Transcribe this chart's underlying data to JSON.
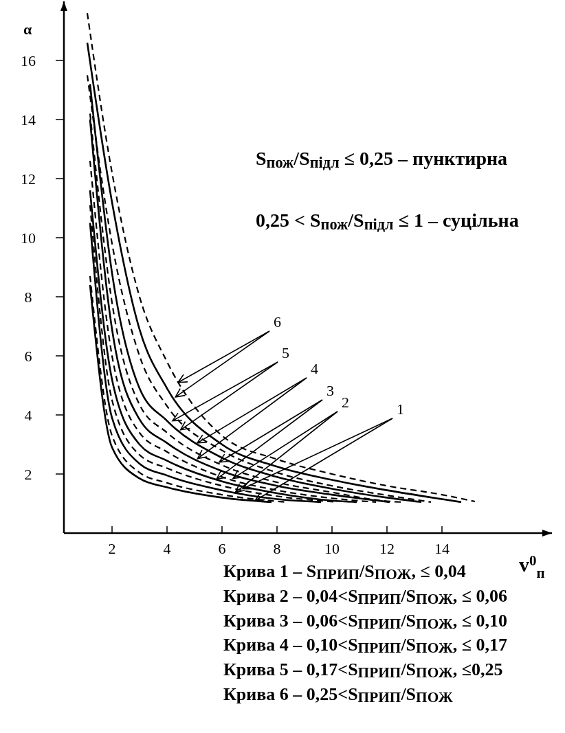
{
  "chart_data": {
    "type": "line",
    "xlabel": "v$^{0}$$_{п}$",
    "ylabel": "α",
    "xlim": [
      0.25,
      18
    ],
    "ylim": [
      0,
      18
    ],
    "xticks": [
      2,
      4,
      6,
      8,
      10,
      12,
      14
    ],
    "yticks": [
      2,
      4,
      6,
      8,
      10,
      12,
      14,
      16
    ],
    "series": [
      {
        "color": "#000000",
        "line_style": "solid",
        "x": [
          1.2,
          2,
          3,
          4,
          6,
          7.8
        ],
        "values": [
          8.4,
          2.9,
          1.85,
          1.55,
          1.2,
          1.05
        ]
      },
      {
        "color": "#000000",
        "line_style": "dashed",
        "x": [
          1.2,
          2,
          3,
          4,
          6,
          8.3
        ],
        "values": [
          8.7,
          3.3,
          2.05,
          1.7,
          1.3,
          1.05
        ]
      },
      {
        "color": "#000000",
        "line_style": "solid",
        "x": [
          1.2,
          2,
          3,
          4,
          6,
          8,
          9.6
        ],
        "values": [
          10.5,
          3.9,
          2.35,
          1.95,
          1.45,
          1.15,
          1.05
        ]
      },
      {
        "color": "#000000",
        "line_style": "dashed",
        "x": [
          1.2,
          2,
          3,
          4,
          6,
          8,
          10.2
        ],
        "values": [
          11.1,
          4.5,
          2.65,
          2.2,
          1.6,
          1.25,
          1.05
        ]
      },
      {
        "color": "#000000",
        "line_style": "solid",
        "x": [
          1.2,
          2,
          3,
          4,
          6,
          8,
          10,
          10.9
        ],
        "values": [
          11.6,
          5.2,
          3.0,
          2.45,
          1.75,
          1.35,
          1.1,
          1.05
        ]
      },
      {
        "color": "#000000",
        "line_style": "dashed",
        "x": [
          1.2,
          2,
          3,
          4,
          6,
          8,
          10,
          11.6
        ],
        "values": [
          12.6,
          6.0,
          3.4,
          2.75,
          1.9,
          1.45,
          1.18,
          1.05
        ]
      },
      {
        "color": "#000000",
        "line_style": "solid",
        "x": [
          1.2,
          2,
          3,
          4,
          6,
          8,
          10,
          12.1
        ],
        "values": [
          14.0,
          6.9,
          3.85,
          3.05,
          2.1,
          1.6,
          1.3,
          1.05
        ]
      },
      {
        "color": "#000000",
        "line_style": "dashed",
        "x": [
          1.2,
          2,
          3,
          4,
          6,
          8,
          10,
          12,
          12.5
        ],
        "values": [
          14.2,
          7.8,
          4.35,
          3.4,
          2.3,
          1.72,
          1.38,
          1.08,
          1.05
        ]
      },
      {
        "color": "#000000",
        "line_style": "solid",
        "x": [
          1.2,
          2,
          3,
          4,
          6,
          8,
          10,
          12,
          13.25
        ],
        "values": [
          15.2,
          8.8,
          4.9,
          3.8,
          2.55,
          1.9,
          1.5,
          1.2,
          1.05
        ]
      },
      {
        "color": "#000000",
        "line_style": "dashed",
        "x": [
          1.1,
          2,
          3,
          4,
          6,
          8,
          10,
          12,
          13.6
        ],
        "values": [
          15.5,
          9.8,
          6.0,
          4.3,
          2.8,
          2.05,
          1.6,
          1.28,
          1.05
        ]
      },
      {
        "color": "#000000",
        "line_style": "solid",
        "x": [
          1.1,
          2,
          3,
          4,
          6,
          8,
          10,
          12,
          14,
          14.7
        ],
        "values": [
          16.6,
          11.2,
          6.9,
          4.9,
          3.0,
          2.25,
          1.8,
          1.45,
          1.15,
          1.05
        ]
      },
      {
        "color": "#000000",
        "line_style": "dashed",
        "x": [
          1.1,
          2,
          3,
          4,
          6,
          8,
          10,
          12,
          14,
          15.2
        ],
        "values": [
          17.6,
          12.2,
          8.0,
          5.8,
          3.3,
          2.5,
          2.0,
          1.6,
          1.3,
          1.07
        ]
      }
    ],
    "annotations": [
      {
        "text": "1",
        "x": 6.75,
        "y": 1.5
      },
      {
        "text": "2",
        "x": 6.4,
        "y": 1.85
      },
      {
        "text": "3",
        "x": 5.9,
        "y": 2.4
      },
      {
        "text": "4",
        "x": 5.1,
        "y": 3.05
      },
      {
        "text": "5",
        "x": 4.2,
        "y": 3.8
      },
      {
        "text": "6",
        "x": 4.4,
        "y": 5.1
      },
      "S$_{пож}$/S$_{підл}$ ≤ 0,25 – пунктирна",
      "0,25 < S$_{пож}$/S$_{підл}$ ≤ 1 – суцільна",
      "Крива 1 – S$_{ПРИП}$/S$_{ПОЖ}$, ≤ 0,04",
      "Крива 2 – 0,04<S$_{ПРИП}$/S$_{ПОЖ}$, ≤ 0,06",
      "Крива 3 – 0,06<S$_{ПРИП}$/S$_{ПОЖ}$, ≤ 0,10",
      "Крива 4 – 0,10<S$_{ПРИП}$/S$_{ПОЖ}$, ≤ 0,17",
      "Крива 5 – 0,17<S$_{ПРИП}$/S$_{ПОЖ}$, ≤0,25",
      "Крива 6 – 0,25<S$_{ПРИП}$/S$_{ПОЖ}$"
    ],
    "grid": false
  }
}
